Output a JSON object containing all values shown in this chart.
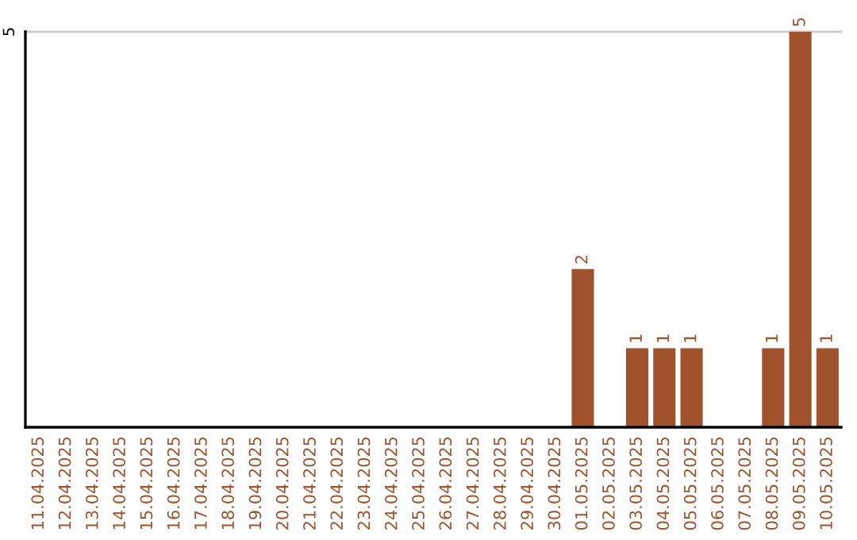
{
  "chart_data": {
    "type": "bar",
    "categories": [
      "11.04.2025",
      "12.04.2025",
      "13.04.2025",
      "14.04.2025",
      "15.04.2025",
      "16.04.2025",
      "17.04.2025",
      "18.04.2025",
      "19.04.2025",
      "20.04.2025",
      "21.04.2025",
      "22.04.2025",
      "23.04.2025",
      "24.04.2025",
      "25.04.2025",
      "26.04.2025",
      "27.04.2025",
      "28.04.2025",
      "29.04.2025",
      "30.04.2025",
      "01.05.2025",
      "02.05.2025",
      "03.05.2025",
      "04.05.2025",
      "05.05.2025",
      "06.05.2025",
      "07.05.2025",
      "08.05.2025",
      "09.05.2025",
      "10.05.2025"
    ],
    "values": [
      null,
      null,
      null,
      null,
      null,
      null,
      null,
      null,
      null,
      null,
      null,
      null,
      null,
      null,
      null,
      null,
      null,
      null,
      null,
      null,
      2,
      null,
      1,
      1,
      1,
      null,
      null,
      1,
      5,
      1
    ],
    "data_labels": true,
    "color": "#a0522d",
    "ylim": [
      0,
      5
    ],
    "yticks": [
      5
    ],
    "ref_lines": [
      {
        "axis": "y",
        "value": 5,
        "color": "#cccccc"
      }
    ]
  }
}
